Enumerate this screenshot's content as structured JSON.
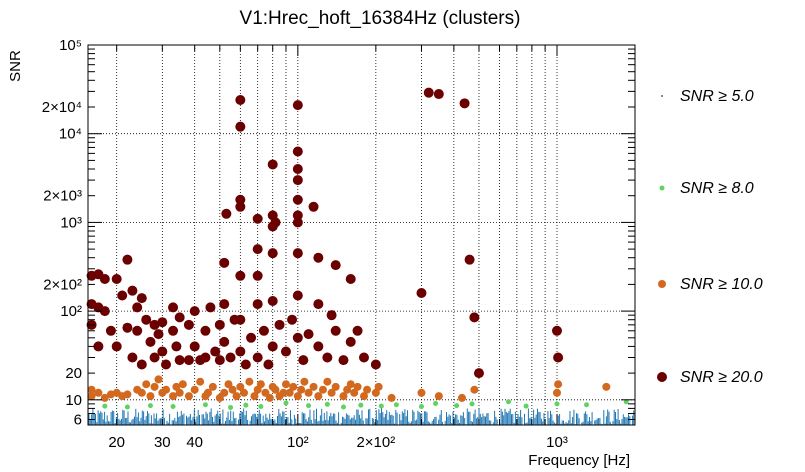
{
  "chart_data": {
    "type": "scatter",
    "title": "V1:Hrec_hoft_16384Hz (clusters)",
    "xlabel": "Frequency [Hz]",
    "ylabel": "SNR",
    "x_scale": "log",
    "y_scale": "log",
    "xlim": [
      15.5,
      2000
    ],
    "ylim": [
      5.2,
      100000
    ],
    "grid": true,
    "legend_position": "right",
    "x_ticks": [
      {
        "value": 20,
        "label": "20"
      },
      {
        "value": 30,
        "label": "30"
      },
      {
        "value": 40,
        "label": "40"
      },
      {
        "value": 100,
        "label": "10²"
      },
      {
        "value": 200,
        "label": "2×10²"
      },
      {
        "value": 1000,
        "label": "10³"
      }
    ],
    "y_ticks": [
      {
        "value": 6,
        "label": "6"
      },
      {
        "value": 10,
        "label": "10"
      },
      {
        "value": 20,
        "label": "20"
      },
      {
        "value": 100,
        "label": "10²"
      },
      {
        "value": 200,
        "label": "2×10²"
      },
      {
        "value": 1000,
        "label": "10³"
      },
      {
        "value": 2000,
        "label": "2×10³"
      },
      {
        "value": 10000,
        "label": "10⁴"
      },
      {
        "value": 20000,
        "label": "2×10⁴"
      },
      {
        "value": 100000,
        "label": "10⁵"
      }
    ],
    "legend": [
      {
        "label": "SNR ≥ 5.0",
        "color": "#1f77b4"
      },
      {
        "label": "SNR ≥ 8.0",
        "color": "#5fd35f"
      },
      {
        "label": "SNR ≥ 10.0",
        "color": "#d2691e"
      },
      {
        "label": "SNR ≥ 20.0",
        "color": "#6b0000"
      }
    ],
    "series": [
      {
        "name": "SNR ≥ 5.0",
        "color": "#1f77b4",
        "marker": "dot",
        "note_range": {
          "x": [
            15.5,
            2000
          ],
          "y": [
            5.2,
            8
          ]
        }
      },
      {
        "name": "SNR ≥ 8.0",
        "color": "#5fd35f",
        "points": [
          [
            18,
            8.5
          ],
          [
            22,
            8.3
          ],
          [
            27,
            8.6
          ],
          [
            33,
            8.4
          ],
          [
            44,
            8.8
          ],
          [
            55,
            8.2
          ],
          [
            63,
            8.7
          ],
          [
            72,
            8.4
          ],
          [
            90,
            9.2
          ],
          [
            110,
            8.6
          ],
          [
            130,
            8.9
          ],
          [
            150,
            8.3
          ],
          [
            175,
            8.7
          ],
          [
            210,
            8.5
          ],
          [
            240,
            8.8
          ],
          [
            300,
            8.4
          ],
          [
            340,
            9.1
          ],
          [
            410,
            8.6
          ],
          [
            470,
            9.0
          ],
          [
            650,
            9.5
          ],
          [
            760,
            8.5
          ],
          [
            1000,
            9.0
          ],
          [
            1300,
            8.8
          ],
          [
            1850,
            9.5
          ]
        ]
      },
      {
        "name": "SNR ≥ 10.0",
        "color": "#d2691e",
        "points": [
          [
            16,
            11
          ],
          [
            16,
            13
          ],
          [
            17,
            12
          ],
          [
            18,
            10.5
          ],
          [
            19,
            11.5
          ],
          [
            20,
            12
          ],
          [
            21,
            11
          ],
          [
            22,
            11.5
          ],
          [
            24,
            13
          ],
          [
            25,
            12
          ],
          [
            26,
            15
          ],
          [
            27,
            11
          ],
          [
            28,
            14
          ],
          [
            29,
            17
          ],
          [
            30,
            12
          ],
          [
            31,
            13
          ],
          [
            33,
            11
          ],
          [
            34,
            14
          ],
          [
            35,
            12
          ],
          [
            36,
            15
          ],
          [
            38,
            11
          ],
          [
            40,
            13
          ],
          [
            42,
            16
          ],
          [
            44,
            11
          ],
          [
            45,
            12
          ],
          [
            47,
            14
          ],
          [
            50,
            10.5
          ],
          [
            52,
            12
          ],
          [
            54,
            15
          ],
          [
            56,
            13
          ],
          [
            58,
            11
          ],
          [
            60,
            14
          ],
          [
            62,
            12
          ],
          [
            65,
            16
          ],
          [
            68,
            11
          ],
          [
            70,
            13
          ],
          [
            72,
            15
          ],
          [
            75,
            12
          ],
          [
            78,
            10.5
          ],
          [
            80,
            14
          ],
          [
            82,
            13
          ],
          [
            85,
            11
          ],
          [
            88,
            12
          ],
          [
            90,
            15
          ],
          [
            93,
            12
          ],
          [
            96,
            14
          ],
          [
            100,
            11
          ],
          [
            103,
            13
          ],
          [
            106,
            16
          ],
          [
            110,
            12
          ],
          [
            115,
            14
          ],
          [
            120,
            11
          ],
          [
            125,
            13
          ],
          [
            130,
            16
          ],
          [
            135,
            12
          ],
          [
            140,
            14
          ],
          [
            150,
            11
          ],
          [
            155,
            13
          ],
          [
            160,
            15
          ],
          [
            165,
            12
          ],
          [
            170,
            14
          ],
          [
            180,
            11
          ],
          [
            185,
            13
          ],
          [
            200,
            12
          ],
          [
            205,
            14
          ],
          [
            230,
            10.5
          ],
          [
            300,
            12
          ],
          [
            350,
            11
          ],
          [
            430,
            10.5
          ],
          [
            480,
            13
          ],
          [
            1000,
            12
          ],
          [
            1010,
            15
          ],
          [
            1550,
            14
          ]
        ]
      },
      {
        "name": "SNR ≥ 20.0",
        "color": "#6b0000",
        "points": [
          [
            16,
            70
          ],
          [
            16,
            120
          ],
          [
            16,
            250
          ],
          [
            17,
            40
          ],
          [
            17,
            110
          ],
          [
            17,
            260
          ],
          [
            18,
            100
          ],
          [
            18,
            230
          ],
          [
            19,
            60
          ],
          [
            20,
            230
          ],
          [
            20,
            40
          ],
          [
            21,
            150
          ],
          [
            22,
            380
          ],
          [
            22,
            65
          ],
          [
            23,
            170
          ],
          [
            23,
            30
          ],
          [
            24,
            110
          ],
          [
            24,
            60
          ],
          [
            25,
            25
          ],
          [
            25,
            140
          ],
          [
            26,
            80
          ],
          [
            27,
            45
          ],
          [
            28,
            70
          ],
          [
            28,
            30
          ],
          [
            29,
            55
          ],
          [
            30,
            35
          ],
          [
            30,
            75
          ],
          [
            31,
            25
          ],
          [
            33,
            110
          ],
          [
            33,
            60
          ],
          [
            34,
            40
          ],
          [
            35,
            28
          ],
          [
            35,
            85
          ],
          [
            38,
            70
          ],
          [
            38,
            28
          ],
          [
            40,
            100
          ],
          [
            40,
            40
          ],
          [
            42,
            28
          ],
          [
            44,
            60
          ],
          [
            44,
            30
          ],
          [
            46,
            110
          ],
          [
            48,
            35
          ],
          [
            50,
            70
          ],
          [
            50,
            28
          ],
          [
            52,
            350
          ],
          [
            52,
            120
          ],
          [
            52,
            45
          ],
          [
            53,
            1250
          ],
          [
            55,
            30
          ],
          [
            57,
            80
          ],
          [
            60,
            24000
          ],
          [
            60,
            12000
          ],
          [
            60,
            1800
          ],
          [
            60,
            1500
          ],
          [
            60,
            250
          ],
          [
            60,
            80
          ],
          [
            60,
            35
          ],
          [
            63,
            25
          ],
          [
            66,
            50
          ],
          [
            70,
            1100
          ],
          [
            70,
            500
          ],
          [
            70,
            250
          ],
          [
            70,
            120
          ],
          [
            70,
            30
          ],
          [
            74,
            60
          ],
          [
            77,
            25
          ],
          [
            80,
            4500
          ],
          [
            80,
            1200
          ],
          [
            80,
            900
          ],
          [
            80,
            450
          ],
          [
            80,
            130
          ],
          [
            80,
            40
          ],
          [
            82,
            1000
          ],
          [
            85,
            70
          ],
          [
            90,
            35
          ],
          [
            95,
            80
          ],
          [
            100,
            6300
          ],
          [
            100,
            4000
          ],
          [
            100,
            3000
          ],
          [
            100,
            1800
          ],
          [
            100,
            1200
          ],
          [
            100,
            1000
          ],
          [
            100,
            21000
          ],
          [
            100,
            450
          ],
          [
            100,
            150
          ],
          [
            100,
            50
          ],
          [
            105,
            28
          ],
          [
            110,
            55
          ],
          [
            115,
            1500
          ],
          [
            120,
            400
          ],
          [
            120,
            120
          ],
          [
            120,
            40
          ],
          [
            130,
            30
          ],
          [
            135,
            90
          ],
          [
            140,
            330
          ],
          [
            140,
            60
          ],
          [
            150,
            28
          ],
          [
            160,
            230
          ],
          [
            160,
            45
          ],
          [
            170,
            60
          ],
          [
            180,
            30
          ],
          [
            200,
            25
          ],
          [
            300,
            160
          ],
          [
            320,
            29000
          ],
          [
            350,
            28000
          ],
          [
            440,
            22000
          ],
          [
            460,
            380
          ],
          [
            480,
            85
          ],
          [
            500,
            20
          ],
          [
            1000,
            60
          ],
          [
            1010,
            30
          ]
        ]
      }
    ]
  }
}
